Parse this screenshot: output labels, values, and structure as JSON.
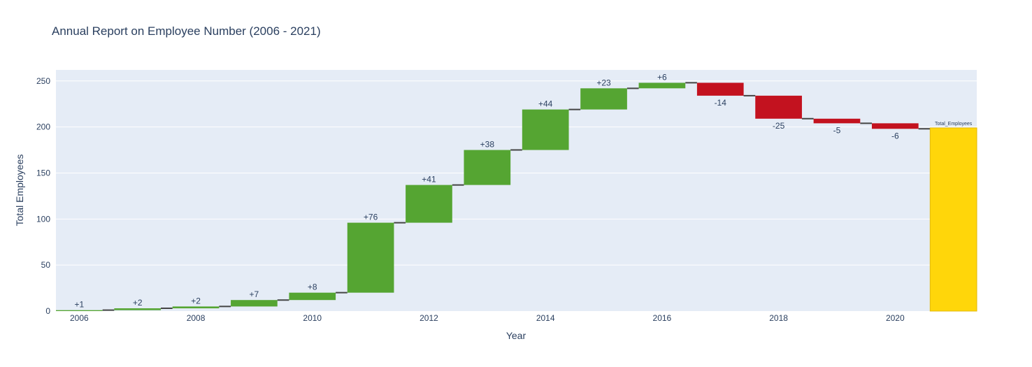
{
  "chart_data": {
    "type": "waterfall",
    "title": "Annual Report on Employee Number (2006 - 2021)",
    "xlabel": "Year",
    "ylabel": "Total Employees",
    "ylim": [
      0,
      262
    ],
    "xlim": [
      2005.6,
      2021.4
    ],
    "yticks": [
      0,
      50,
      100,
      150,
      200,
      250
    ],
    "xticks": [
      2006,
      2008,
      2010,
      2012,
      2014,
      2016,
      2018,
      2020
    ],
    "steps": [
      {
        "x": 2006,
        "delta": 1,
        "label": "+1"
      },
      {
        "x": 2007,
        "delta": 2,
        "label": "+2"
      },
      {
        "x": 2008,
        "delta": 2,
        "label": "+2"
      },
      {
        "x": 2009,
        "delta": 7,
        "label": "+7"
      },
      {
        "x": 2010,
        "delta": 8,
        "label": "+8"
      },
      {
        "x": 2011,
        "delta": 76,
        "label": "+76"
      },
      {
        "x": 2012,
        "delta": 41,
        "label": "+41"
      },
      {
        "x": 2013,
        "delta": 38,
        "label": "+38"
      },
      {
        "x": 2014,
        "delta": 44,
        "label": "+44"
      },
      {
        "x": 2015,
        "delta": 23,
        "label": "+23"
      },
      {
        "x": 2016,
        "delta": 6,
        "label": "+6"
      },
      {
        "x": 2017,
        "delta": -14,
        "label": "-14"
      },
      {
        "x": 2018,
        "delta": -25,
        "label": "-25"
      },
      {
        "x": 2019,
        "delta": -5,
        "label": "-5"
      },
      {
        "x": 2020,
        "delta": -6,
        "label": "-6"
      }
    ],
    "total": {
      "x": 2021,
      "value": 199,
      "label": "Total_Employees"
    },
    "colors": {
      "increase": "#55a532",
      "decrease": "#c3121f",
      "total": "#ffd60a",
      "total_border": "#e3b80a",
      "connector": "#444444",
      "plot_bg": "#e5ecf6",
      "grid": "#ffffff"
    },
    "grid": true,
    "legend": "none"
  }
}
